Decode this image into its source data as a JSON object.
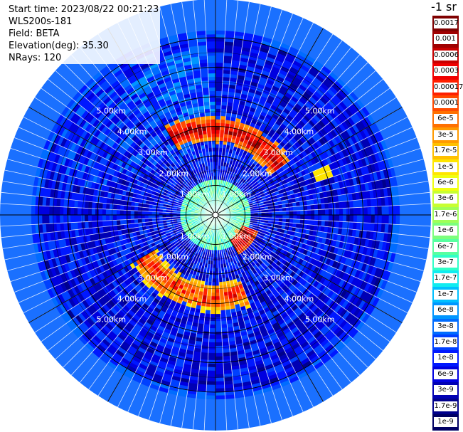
{
  "header": {
    "start_time": "Start time: 2023/08/22 00:21:23",
    "instrument": "WLS200s-181",
    "field": "Field: BETA",
    "elevation": "Elevation(deg): 35.30",
    "nrays": "NRays: 120"
  },
  "colorbar": {
    "title": "-1 sr",
    "labels": [
      "0.0017",
      "0.001",
      "0.0006",
      "0.0003",
      "0.00017",
      "0.0001",
      "6e-5",
      "3e-5",
      "1.7e-5",
      "1e-5",
      "6e-6",
      "3e-6",
      "1.7e-6",
      "1e-6",
      "6e-7",
      "3e-7",
      "1.7e-7",
      "1e-7",
      "6e-8",
      "3e-8",
      "1.7e-8",
      "1e-8",
      "6e-9",
      "3e-9",
      "1.7e-9",
      "1e-9"
    ],
    "colors": [
      "#7f0000",
      "#a00000",
      "#c80000",
      "#f00000",
      "#ff2000",
      "#ff4a00",
      "#ff7000",
      "#ff9a00",
      "#ffc000",
      "#ffe600",
      "#f0ff10",
      "#c8ff30",
      "#a0ff58",
      "#7cff7c",
      "#58ffa0",
      "#30ffc8",
      "#10ecf0",
      "#00c0ff",
      "#0096ff",
      "#006cff",
      "#0040ff",
      "#0018ff",
      "#0000e0",
      "#0000b4",
      "#00008c",
      "#000064"
    ]
  },
  "chart_data": {
    "type": "heatmap",
    "projection": "polar PPI scan",
    "variable": "BETA",
    "units": "-1 sr",
    "nrays": 120,
    "range_ring_labels": [
      "1.00km",
      "2.00km",
      "3.00km",
      "4.00km",
      "5.00km"
    ],
    "max_range_km": 6.2,
    "background_level": "1e-8 to 3e-8",
    "features": [
      {
        "region": "near field 0-1 km",
        "level": "3e-7 to 1e-6"
      },
      {
        "region": "arc NNW to NE at about 2.8-3.3 km",
        "level": "3e-5 to 0.0017"
      },
      {
        "region": "arc SE at about 1.0-1.4 km",
        "level": "3e-5 to 0.001"
      },
      {
        "region": "arc S to SW at about 2.5-3.1 km",
        "level": "1e-5 to 0.0003"
      },
      {
        "region": "isolated gate E at about 3.9 km",
        "level": "1e-5"
      }
    ]
  }
}
